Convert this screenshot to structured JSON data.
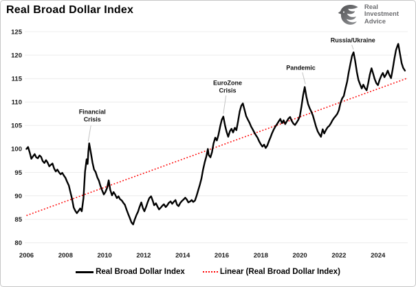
{
  "header": {
    "title": "Real Broad Dollar Index"
  },
  "logo": {
    "lines": [
      "Real",
      "Investment",
      "Advice"
    ],
    "icon": "eagle-icon",
    "text_color": "#6d6e71"
  },
  "colors": {
    "series": "#000000",
    "trend": "#FF0000",
    "grid": "#ececec",
    "leader": "#c2c2c2",
    "border": "#c6c6c6"
  },
  "legend": {
    "items": [
      {
        "label": "Real Broad Dollar Index",
        "marker": "solid-black-line"
      },
      {
        "label": "Linear (Real Broad Dollar Index)",
        "marker": "dotted-red-line"
      }
    ]
  },
  "chart_data": {
    "type": "line",
    "title": "Real Broad Dollar Index",
    "xlabel": "",
    "ylabel": "",
    "xlim": [
      2005.9,
      2025.6
    ],
    "ylim": [
      80,
      125
    ],
    "grid": "horizontal",
    "legend_position": "bottom",
    "xticks": [
      2006,
      2008,
      2010,
      2012,
      2014,
      2016,
      2018,
      2020,
      2022,
      2024
    ],
    "yticks": [
      80,
      85,
      90,
      95,
      100,
      105,
      110,
      115,
      120,
      125
    ],
    "series": [
      {
        "name": "Real Broad Dollar Index",
        "color": "#000000",
        "style": "solid",
        "points": [
          [
            2006.0,
            100.0
          ],
          [
            2006.08,
            100.4
          ],
          [
            2006.17,
            99.2
          ],
          [
            2006.25,
            97.9
          ],
          [
            2006.33,
            98.4
          ],
          [
            2006.42,
            98.9
          ],
          [
            2006.5,
            98.2
          ],
          [
            2006.58,
            98.0
          ],
          [
            2006.67,
            98.6
          ],
          [
            2006.75,
            98.3
          ],
          [
            2006.83,
            97.4
          ],
          [
            2006.92,
            97.0
          ],
          [
            2007.0,
            97.6
          ],
          [
            2007.08,
            97.1
          ],
          [
            2007.17,
            96.3
          ],
          [
            2007.25,
            96.6
          ],
          [
            2007.33,
            96.9
          ],
          [
            2007.42,
            95.8
          ],
          [
            2007.5,
            95.2
          ],
          [
            2007.58,
            95.6
          ],
          [
            2007.67,
            95.0
          ],
          [
            2007.75,
            94.6
          ],
          [
            2007.83,
            94.9
          ],
          [
            2007.92,
            94.3
          ],
          [
            2008.0,
            93.8
          ],
          [
            2008.08,
            93.0
          ],
          [
            2008.17,
            92.2
          ],
          [
            2008.25,
            90.8
          ],
          [
            2008.33,
            89.4
          ],
          [
            2008.42,
            87.5
          ],
          [
            2008.5,
            86.8
          ],
          [
            2008.58,
            86.3
          ],
          [
            2008.67,
            86.8
          ],
          [
            2008.75,
            87.3
          ],
          [
            2008.83,
            86.7
          ],
          [
            2008.92,
            89.5
          ],
          [
            2009.0,
            95.2
          ],
          [
            2009.08,
            97.8
          ],
          [
            2009.13,
            96.8
          ],
          [
            2009.17,
            99.4
          ],
          [
            2009.21,
            101.2
          ],
          [
            2009.29,
            99.4
          ],
          [
            2009.38,
            97.1
          ],
          [
            2009.46,
            95.6
          ],
          [
            2009.54,
            95.1
          ],
          [
            2009.63,
            93.9
          ],
          [
            2009.71,
            93.2
          ],
          [
            2009.79,
            92.1
          ],
          [
            2009.88,
            91.1
          ],
          [
            2009.96,
            90.3
          ],
          [
            2010.04,
            90.8
          ],
          [
            2010.13,
            91.7
          ],
          [
            2010.21,
            93.3
          ],
          [
            2010.29,
            91.3
          ],
          [
            2010.38,
            90.1
          ],
          [
            2010.46,
            90.8
          ],
          [
            2010.54,
            90.3
          ],
          [
            2010.63,
            89.5
          ],
          [
            2010.71,
            89.9
          ],
          [
            2010.79,
            89.3
          ],
          [
            2010.88,
            89.0
          ],
          [
            2010.96,
            88.5
          ],
          [
            2011.04,
            88.1
          ],
          [
            2011.13,
            87.0
          ],
          [
            2011.21,
            86.1
          ],
          [
            2011.29,
            85.3
          ],
          [
            2011.38,
            84.3
          ],
          [
            2011.46,
            83.9
          ],
          [
            2011.54,
            84.9
          ],
          [
            2011.63,
            85.9
          ],
          [
            2011.71,
            86.6
          ],
          [
            2011.79,
            87.6
          ],
          [
            2011.88,
            88.6
          ],
          [
            2011.96,
            87.4
          ],
          [
            2012.04,
            86.7
          ],
          [
            2012.13,
            87.7
          ],
          [
            2012.21,
            88.7
          ],
          [
            2012.29,
            89.5
          ],
          [
            2012.38,
            89.9
          ],
          [
            2012.46,
            89.0
          ],
          [
            2012.54,
            88.0
          ],
          [
            2012.63,
            88.4
          ],
          [
            2012.71,
            87.7
          ],
          [
            2012.79,
            87.1
          ],
          [
            2012.88,
            87.5
          ],
          [
            2012.96,
            87.9
          ],
          [
            2013.04,
            88.2
          ],
          [
            2013.13,
            87.6
          ],
          [
            2013.21,
            88.0
          ],
          [
            2013.29,
            88.5
          ],
          [
            2013.38,
            88.8
          ],
          [
            2013.46,
            88.3
          ],
          [
            2013.54,
            88.7
          ],
          [
            2013.63,
            89.1
          ],
          [
            2013.71,
            88.1
          ],
          [
            2013.79,
            87.8
          ],
          [
            2013.88,
            88.5
          ],
          [
            2013.96,
            88.9
          ],
          [
            2014.04,
            89.2
          ],
          [
            2014.13,
            89.6
          ],
          [
            2014.21,
            89.2
          ],
          [
            2014.29,
            88.6
          ],
          [
            2014.38,
            88.8
          ],
          [
            2014.46,
            89.1
          ],
          [
            2014.54,
            88.7
          ],
          [
            2014.63,
            89.0
          ],
          [
            2014.71,
            90.0
          ],
          [
            2014.79,
            91.1
          ],
          [
            2014.88,
            92.4
          ],
          [
            2014.96,
            93.7
          ],
          [
            2015.04,
            95.5
          ],
          [
            2015.13,
            97.2
          ],
          [
            2015.21,
            98.4
          ],
          [
            2015.29,
            100.0
          ],
          [
            2015.33,
            98.7
          ],
          [
            2015.42,
            98.2
          ],
          [
            2015.5,
            99.3
          ],
          [
            2015.58,
            101.2
          ],
          [
            2015.67,
            102.4
          ],
          [
            2015.75,
            101.8
          ],
          [
            2015.83,
            103.0
          ],
          [
            2015.92,
            104.8
          ],
          [
            2016.0,
            106.2
          ],
          [
            2016.08,
            106.9
          ],
          [
            2016.17,
            105.0
          ],
          [
            2016.25,
            103.6
          ],
          [
            2016.33,
            102.6
          ],
          [
            2016.42,
            103.8
          ],
          [
            2016.5,
            104.3
          ],
          [
            2016.58,
            103.5
          ],
          [
            2016.67,
            104.5
          ],
          [
            2016.75,
            104.0
          ],
          [
            2016.83,
            105.8
          ],
          [
            2016.92,
            108.0
          ],
          [
            2017.0,
            109.2
          ],
          [
            2017.08,
            109.7
          ],
          [
            2017.17,
            108.3
          ],
          [
            2017.25,
            107.0
          ],
          [
            2017.33,
            106.3
          ],
          [
            2017.42,
            105.6
          ],
          [
            2017.5,
            104.8
          ],
          [
            2017.58,
            104.2
          ],
          [
            2017.67,
            103.5
          ],
          [
            2017.75,
            102.9
          ],
          [
            2017.83,
            102.4
          ],
          [
            2017.92,
            101.6
          ],
          [
            2018.0,
            101.0
          ],
          [
            2018.08,
            100.5
          ],
          [
            2018.17,
            100.9
          ],
          [
            2018.25,
            100.2
          ],
          [
            2018.33,
            100.7
          ],
          [
            2018.42,
            101.7
          ],
          [
            2018.5,
            102.5
          ],
          [
            2018.58,
            103.4
          ],
          [
            2018.67,
            104.2
          ],
          [
            2018.75,
            104.8
          ],
          [
            2018.83,
            105.3
          ],
          [
            2018.92,
            105.9
          ],
          [
            2019.0,
            106.4
          ],
          [
            2019.08,
            105.5
          ],
          [
            2019.17,
            106.1
          ],
          [
            2019.25,
            105.3
          ],
          [
            2019.33,
            105.9
          ],
          [
            2019.42,
            106.5
          ],
          [
            2019.5,
            106.8
          ],
          [
            2019.58,
            106.0
          ],
          [
            2019.67,
            105.4
          ],
          [
            2019.75,
            105.1
          ],
          [
            2019.83,
            105.6
          ],
          [
            2019.92,
            106.2
          ],
          [
            2020.0,
            107.0
          ],
          [
            2020.08,
            109.0
          ],
          [
            2020.17,
            111.5
          ],
          [
            2020.25,
            113.2
          ],
          [
            2020.33,
            111.2
          ],
          [
            2020.42,
            109.6
          ],
          [
            2020.5,
            108.7
          ],
          [
            2020.58,
            108.0
          ],
          [
            2020.67,
            107.1
          ],
          [
            2020.75,
            105.9
          ],
          [
            2020.83,
            104.7
          ],
          [
            2020.92,
            103.7
          ],
          [
            2021.0,
            103.1
          ],
          [
            2021.08,
            102.6
          ],
          [
            2021.17,
            104.2
          ],
          [
            2021.25,
            103.3
          ],
          [
            2021.33,
            104.0
          ],
          [
            2021.42,
            104.6
          ],
          [
            2021.5,
            104.9
          ],
          [
            2021.58,
            105.4
          ],
          [
            2021.67,
            106.1
          ],
          [
            2021.75,
            106.6
          ],
          [
            2021.83,
            107.0
          ],
          [
            2021.92,
            107.5
          ],
          [
            2022.0,
            108.3
          ],
          [
            2022.08,
            109.8
          ],
          [
            2022.17,
            110.8
          ],
          [
            2022.25,
            111.3
          ],
          [
            2022.33,
            112.8
          ],
          [
            2022.42,
            114.3
          ],
          [
            2022.5,
            116.3
          ],
          [
            2022.58,
            118.0
          ],
          [
            2022.67,
            119.8
          ],
          [
            2022.75,
            120.6
          ],
          [
            2022.83,
            118.8
          ],
          [
            2022.92,
            116.4
          ],
          [
            2023.0,
            114.7
          ],
          [
            2023.08,
            113.8
          ],
          [
            2023.17,
            112.9
          ],
          [
            2023.25,
            113.7
          ],
          [
            2023.33,
            113.0
          ],
          [
            2023.42,
            112.5
          ],
          [
            2023.5,
            114.0
          ],
          [
            2023.58,
            115.8
          ],
          [
            2023.67,
            117.2
          ],
          [
            2023.75,
            116.1
          ],
          [
            2023.83,
            114.9
          ],
          [
            2023.92,
            114.0
          ],
          [
            2024.0,
            113.6
          ],
          [
            2024.08,
            114.7
          ],
          [
            2024.17,
            115.6
          ],
          [
            2024.25,
            116.2
          ],
          [
            2024.33,
            115.3
          ],
          [
            2024.42,
            115.9
          ],
          [
            2024.5,
            116.7
          ],
          [
            2024.58,
            115.8
          ],
          [
            2024.67,
            115.1
          ],
          [
            2024.75,
            116.9
          ],
          [
            2024.83,
            119.0
          ],
          [
            2024.92,
            121.0
          ],
          [
            2025.0,
            122.0
          ],
          [
            2025.04,
            122.4
          ],
          [
            2025.13,
            120.2
          ],
          [
            2025.21,
            118.3
          ],
          [
            2025.29,
            117.3
          ],
          [
            2025.38,
            116.7
          ]
        ]
      },
      {
        "name": "Linear (Real Broad Dollar Index)",
        "color": "#FF0000",
        "style": "dotted",
        "trend_endpoints": [
          [
            2006.0,
            85.8
          ],
          [
            2025.45,
            115.0
          ]
        ]
      }
    ],
    "annotations": [
      {
        "lines": [
          "Financial",
          "Crisis"
        ],
        "text_x": 2009.37,
        "text_y": 107.9,
        "leader": [
          2009.3,
          105.0,
          2009.16,
          101.6
        ]
      },
      {
        "lines": [
          "EuroZone",
          "Crisis"
        ],
        "text_x": 2016.3,
        "text_y": 114.1,
        "leader": [
          2016.22,
          111.4,
          2016.08,
          107.5
        ]
      },
      {
        "lines": [
          "Pandemic"
        ],
        "text_x": 2020.05,
        "text_y": 117.3,
        "leader": [
          2020.13,
          116.3,
          2020.28,
          113.8
        ]
      },
      {
        "lines": [
          "Russia/Ukraine"
        ],
        "text_x": 2022.72,
        "text_y": 123.2,
        "leader": [
          2022.66,
          122.2,
          2022.74,
          121.2
        ]
      }
    ]
  }
}
